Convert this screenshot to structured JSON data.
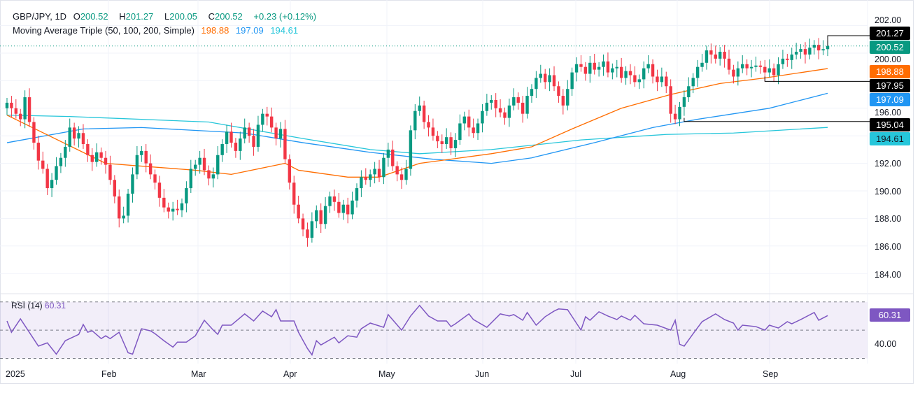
{
  "header": {
    "symbol": "GBP/JPY, 1D",
    "o_label": "O",
    "o": "200.52",
    "h_label": "H",
    "h": "201.27",
    "l_label": "L",
    "l": "200.05",
    "c_label": "C",
    "c": "200.52",
    "change": "+0.23 (+0.12%)",
    "ma_title": "Moving Average Triple (50, 100, 200, Simple)",
    "ma50": "198.88",
    "ma100": "197.09",
    "ma200": "194.61"
  },
  "price_tags": {
    "high": "201.27",
    "last": "200.52",
    "ma50": "198.88",
    "level1": "197.95",
    "ma100": "197.09",
    "level2": "195.04",
    "ma200": "194.61"
  },
  "price_axis": [
    "202.00",
    "200.00",
    "196.00",
    "192.00",
    "190.00",
    "188.00",
    "186.00",
    "184.00"
  ],
  "rsi": {
    "title": "RSI (14)",
    "value": "60.31",
    "axis_label": "40.00"
  },
  "months": [
    "2025",
    "Feb",
    "Mar",
    "Apr",
    "May",
    "Jun",
    "Jul",
    "Aug",
    "Sep"
  ],
  "colors": {
    "up": "#089981",
    "down": "#f23645",
    "ma50": "#ff6d00",
    "ma100": "#2196f3",
    "ma200": "#26c6da",
    "rsi": "#7e57c2"
  },
  "chart_data": {
    "type": "candlestick",
    "title": "GBP/JPY, 1D",
    "first_open": 196.0,
    "closes": [
      196.4,
      196.0,
      195.6,
      195.2,
      196.8,
      195.0,
      193.5,
      192.2,
      191.6,
      190.2,
      190.8,
      191.8,
      192.4,
      193.2,
      194.6,
      193.8,
      194.2,
      193.4,
      192.6,
      192.1,
      192.8,
      192.4,
      191.9,
      190.8,
      189.6,
      188.0,
      188.2,
      189.8,
      191.2,
      192.6,
      192.9,
      192.0,
      191.2,
      190.6,
      189.5,
      188.8,
      188.5,
      188.7,
      188.6,
      189.1,
      190.2,
      191.6,
      191.9,
      192.4,
      191.5,
      190.9,
      191.2,
      192.6,
      193.4,
      194.3,
      193.5,
      192.9,
      193.8,
      194.6,
      194.0,
      193.2,
      194.8,
      195.6,
      195.4,
      194.6,
      193.8,
      194.5,
      192.3,
      190.6,
      189.0,
      188.0,
      187.2,
      186.6,
      187.8,
      188.6,
      187.6,
      188.9,
      189.6,
      189.2,
      188.4,
      189.0,
      188.3,
      189.3,
      190.2,
      191.0,
      190.8,
      191.2,
      191.6,
      191.0,
      192.4,
      193.0,
      191.8,
      191.2,
      190.8,
      191.6,
      194.4,
      195.8,
      196.2,
      195.0,
      194.6,
      194.0,
      193.6,
      193.4,
      193.9,
      193.1,
      193.7,
      194.9,
      195.4,
      194.6,
      194.2,
      194.9,
      195.8,
      196.4,
      196.6,
      196.0,
      195.7,
      195.3,
      196.2,
      196.8,
      196.4,
      195.6,
      196.9,
      197.4,
      198.2,
      198.5,
      197.9,
      198.4,
      197.6,
      196.9,
      196.2,
      197.4,
      198.6,
      199.2,
      199.0,
      198.5,
      199.3,
      198.8,
      199.0,
      199.4,
      198.6,
      198.9,
      199.0,
      198.2,
      198.7,
      198.4,
      197.9,
      198.1,
      198.9,
      199.2,
      198.3,
      197.9,
      198.3,
      197.6,
      195.6,
      195.2,
      196.1,
      196.8,
      197.6,
      198.2,
      199.0,
      199.3,
      200.2,
      199.9,
      199.6,
      200.1,
      199.6,
      198.8,
      198.3,
      198.9,
      199.2,
      198.9,
      199.0,
      199.1,
      199.0,
      198.6,
      198.9,
      198.4,
      199.2,
      199.6,
      199.5,
      199.9,
      200.1,
      200.3,
      199.9,
      200.4,
      200.6,
      200.2,
      200.29,
      200.52
    ],
    "ma50": [
      [
        0,
        195.5
      ],
      [
        22,
        192.0
      ],
      [
        42,
        191.5
      ],
      [
        50,
        191.2
      ],
      [
        62,
        192.0
      ],
      [
        65,
        191.5
      ],
      [
        76,
        191.0
      ],
      [
        83,
        191.0
      ],
      [
        92,
        192.0
      ],
      [
        108,
        192.7
      ],
      [
        117,
        193.2
      ],
      [
        126,
        194.5
      ],
      [
        137,
        196.0
      ],
      [
        148,
        197.0
      ],
      [
        159,
        197.8
      ],
      [
        169,
        198.2
      ],
      [
        183,
        198.88
      ]
    ],
    "ma100": [
      [
        0,
        193.5
      ],
      [
        17,
        194.5
      ],
      [
        30,
        194.6
      ],
      [
        53,
        194.2
      ],
      [
        66,
        193.5
      ],
      [
        81,
        192.8
      ],
      [
        95,
        192.3
      ],
      [
        108,
        192.0
      ],
      [
        117,
        192.4
      ],
      [
        131,
        193.5
      ],
      [
        144,
        194.6
      ],
      [
        154,
        195.2
      ],
      [
        170,
        196.0
      ],
      [
        183,
        197.09
      ]
    ],
    "ma200": [
      [
        0,
        195.5
      ],
      [
        14,
        195.4
      ],
      [
        45,
        195.0
      ],
      [
        66,
        193.8
      ],
      [
        81,
        193.0
      ],
      [
        92,
        192.7
      ],
      [
        108,
        193.0
      ],
      [
        128,
        193.7
      ],
      [
        147,
        194.1
      ],
      [
        162,
        194.2
      ],
      [
        183,
        194.61
      ]
    ],
    "levels": [
      201.27,
      197.95,
      195.04
    ],
    "ylim": [
      183,
      202.6
    ],
    "rsi": [
      [
        0,
        56.5
      ],
      [
        1,
        48.5
      ],
      [
        3,
        58
      ],
      [
        7,
        38.7
      ],
      [
        9,
        41
      ],
      [
        11,
        33
      ],
      [
        13,
        42.5
      ],
      [
        16,
        47
      ],
      [
        17,
        54
      ],
      [
        18,
        48.5
      ],
      [
        19,
        49.5
      ],
      [
        21,
        44
      ],
      [
        22,
        46
      ],
      [
        23,
        44
      ],
      [
        25,
        48.5
      ],
      [
        27,
        34
      ],
      [
        28,
        33
      ],
      [
        30,
        51
      ],
      [
        32,
        49.5
      ],
      [
        33,
        47.5
      ],
      [
        35,
        42.5
      ],
      [
        37,
        38
      ],
      [
        38,
        41.5
      ],
      [
        40,
        41.5
      ],
      [
        42,
        46
      ],
      [
        44,
        57
      ],
      [
        46,
        50
      ],
      [
        47,
        47
      ],
      [
        48,
        53.5
      ],
      [
        50,
        53.5
      ],
      [
        53,
        61.5
      ],
      [
        55,
        56.5
      ],
      [
        57,
        63.5
      ],
      [
        59,
        59.5
      ],
      [
        60,
        64.5
      ],
      [
        61,
        56.5
      ],
      [
        64,
        56.5
      ],
      [
        65,
        48.5
      ],
      [
        67,
        37
      ],
      [
        68,
        32.5
      ],
      [
        69,
        42.5
      ],
      [
        70,
        39.5
      ],
      [
        73,
        45
      ],
      [
        74,
        41
      ],
      [
        76,
        46
      ],
      [
        78,
        45
      ],
      [
        79,
        51
      ],
      [
        81,
        55
      ],
      [
        84,
        52
      ],
      [
        85,
        61
      ],
      [
        88,
        50
      ],
      [
        90,
        60
      ],
      [
        92,
        67.5
      ],
      [
        94,
        60
      ],
      [
        96,
        56.5
      ],
      [
        98,
        56.5
      ],
      [
        99,
        52.5
      ],
      [
        100,
        54.5
      ],
      [
        103,
        61.5
      ],
      [
        104,
        57.5
      ],
      [
        107,
        52
      ],
      [
        110,
        61.5
      ],
      [
        112,
        60
      ],
      [
        113,
        61
      ],
      [
        115,
        57
      ],
      [
        116,
        62.5
      ],
      [
        118,
        53.5
      ],
      [
        120,
        59.5
      ],
      [
        122,
        63.5
      ],
      [
        123,
        65
      ],
      [
        125,
        64.5
      ],
      [
        128,
        50
      ],
      [
        129,
        59.5
      ],
      [
        130,
        57
      ],
      [
        132,
        63
      ],
      [
        134,
        60
      ],
      [
        136,
        57.5
      ],
      [
        137,
        60
      ],
      [
        139,
        57
      ],
      [
        140,
        60.5
      ],
      [
        142,
        54.5
      ],
      [
        145,
        53.5
      ],
      [
        148,
        50
      ],
      [
        149,
        57
      ],
      [
        150,
        40
      ],
      [
        151,
        38.7
      ],
      [
        153,
        47.5
      ],
      [
        155,
        56
      ],
      [
        158,
        61.5
      ],
      [
        160,
        57.5
      ],
      [
        162,
        55
      ],
      [
        163,
        50
      ],
      [
        164,
        53.5
      ],
      [
        167,
        52.5
      ],
      [
        169,
        50
      ],
      [
        170,
        53.5
      ],
      [
        172,
        51.5
      ],
      [
        174,
        56
      ],
      [
        175,
        54.5
      ],
      [
        177,
        57.5
      ],
      [
        180,
        62.5
      ],
      [
        181,
        57
      ],
      [
        183,
        60.31
      ]
    ],
    "rsi_bands": [
      70,
      50,
      30
    ]
  }
}
